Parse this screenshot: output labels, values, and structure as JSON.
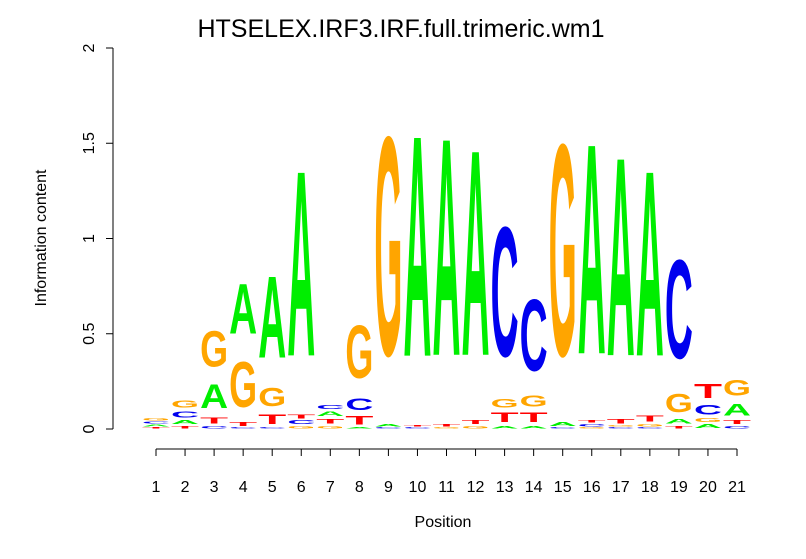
{
  "chart_data": {
    "type": "sequence-logo",
    "title": "HTSELEX.IRF3.IRF.full.trimeric.wm1",
    "xlabel": "Position",
    "ylabel": "Information content",
    "ylim": [
      0,
      2
    ],
    "yticks": [
      "0",
      "0.5",
      "1",
      "1.5",
      "2"
    ],
    "colors": {
      "A": "#00ee00",
      "C": "#0000ee",
      "G": "#ffa500",
      "T": "#ff0000"
    },
    "positions": [
      {
        "x": "1",
        "letters": [
          {
            "l": "T",
            "h": 0.01
          },
          {
            "l": "A",
            "h": 0.015
          },
          {
            "l": "C",
            "h": 0.015
          },
          {
            "l": "G",
            "h": 0.02
          }
        ]
      },
      {
        "x": "2",
        "letters": [
          {
            "l": "T",
            "h": 0.02
          },
          {
            "l": "A",
            "h": 0.03
          },
          {
            "l": "C",
            "h": 0.05
          },
          {
            "l": "G",
            "h": 0.06
          }
        ]
      },
      {
        "x": "3",
        "letters": [
          {
            "l": "C",
            "h": 0.02
          },
          {
            "l": "T",
            "h": 0.05
          },
          {
            "l": "A",
            "h": 0.2
          },
          {
            "l": "G",
            "h": 0.3
          }
        ]
      },
      {
        "x": "4",
        "letters": [
          {
            "l": "C",
            "h": 0.01
          },
          {
            "l": "T",
            "h": 0.03
          },
          {
            "l": "G",
            "h": 0.38
          },
          {
            "l": "A",
            "h": 0.42
          }
        ]
      },
      {
        "x": "5",
        "letters": [
          {
            "l": "C",
            "h": 0.01
          },
          {
            "l": "T",
            "h": 0.08
          },
          {
            "l": "G",
            "h": 0.15
          },
          {
            "l": "A",
            "h": 0.69
          }
        ]
      },
      {
        "x": "6",
        "letters": [
          {
            "l": "G",
            "h": 0.02
          },
          {
            "l": "C",
            "h": 0.03
          },
          {
            "l": "T",
            "h": 0.03
          },
          {
            "l": "A",
            "h": 1.56
          }
        ]
      },
      {
        "x": "7",
        "letters": [
          {
            "l": "G",
            "h": 0.02
          },
          {
            "l": "T",
            "h": 0.04
          },
          {
            "l": "A",
            "h": 0.04
          },
          {
            "l": "C",
            "h": 0.03
          }
        ]
      },
      {
        "x": "8",
        "letters": [
          {
            "l": "A",
            "h": 0.01
          },
          {
            "l": "T",
            "h": 0.07
          },
          {
            "l": "C",
            "h": 0.1
          },
          {
            "l": "G",
            "h": 0.44
          }
        ]
      },
      {
        "x": "9",
        "letters": [
          {
            "l": "C",
            "h": 0.01
          },
          {
            "l": "A",
            "h": 0.02
          },
          {
            "l": "G",
            "h": 1.84
          }
        ]
      },
      {
        "x": "10",
        "letters": [
          {
            "l": "C",
            "h": 0.01
          },
          {
            "l": "T",
            "h": 0.01
          },
          {
            "l": "A",
            "h": 1.86
          }
        ]
      },
      {
        "x": "11",
        "letters": [
          {
            "l": "G",
            "h": 0.01
          },
          {
            "l": "T",
            "h": 0.02
          },
          {
            "l": "A",
            "h": 1.83
          }
        ]
      },
      {
        "x": "12",
        "letters": [
          {
            "l": "G",
            "h": 0.02
          },
          {
            "l": "T",
            "h": 0.03
          },
          {
            "l": "A",
            "h": 1.73
          }
        ]
      },
      {
        "x": "13",
        "letters": [
          {
            "l": "A",
            "h": 0.02
          },
          {
            "l": "T",
            "h": 0.08
          },
          {
            "l": "G",
            "h": 0.07
          },
          {
            "l": "C",
            "h": 1.09
          }
        ]
      },
      {
        "x": "14",
        "letters": [
          {
            "l": "A",
            "h": 0.02
          },
          {
            "l": "T",
            "h": 0.08
          },
          {
            "l": "G",
            "h": 0.09
          },
          {
            "l": "C",
            "h": 0.6
          }
        ]
      },
      {
        "x": "15",
        "letters": [
          {
            "l": "C",
            "h": 0.01
          },
          {
            "l": "A",
            "h": 0.03
          },
          {
            "l": "G",
            "h": 1.78
          }
        ]
      },
      {
        "x": "16",
        "letters": [
          {
            "l": "G",
            "h": 0.01
          },
          {
            "l": "C",
            "h": 0.02
          },
          {
            "l": "T",
            "h": 0.02
          },
          {
            "l": "A",
            "h": 1.77
          }
        ]
      },
      {
        "x": "17",
        "letters": [
          {
            "l": "C",
            "h": 0.01
          },
          {
            "l": "G",
            "h": 0.01
          },
          {
            "l": "T",
            "h": 0.04
          },
          {
            "l": "A",
            "h": 1.67
          }
        ]
      },
      {
        "x": "18",
        "letters": [
          {
            "l": "C",
            "h": 0.01
          },
          {
            "l": "G",
            "h": 0.02
          },
          {
            "l": "T",
            "h": 0.05
          },
          {
            "l": "A",
            "h": 1.56
          }
        ]
      },
      {
        "x": "19",
        "letters": [
          {
            "l": "T",
            "h": 0.02
          },
          {
            "l": "A",
            "h": 0.04
          },
          {
            "l": "G",
            "h": 0.15
          },
          {
            "l": "C",
            "h": 0.83
          }
        ]
      },
      {
        "x": "20",
        "letters": [
          {
            "l": "A",
            "h": 0.03
          },
          {
            "l": "G",
            "h": 0.03
          },
          {
            "l": "C",
            "h": 0.08
          },
          {
            "l": "T",
            "h": 0.12
          }
        ]
      },
      {
        "x": "21",
        "letters": [
          {
            "l": "C",
            "h": 0.02
          },
          {
            "l": "T",
            "h": 0.03
          },
          {
            "l": "A",
            "h": 0.1
          },
          {
            "l": "G",
            "h": 0.13
          }
        ]
      }
    ]
  }
}
